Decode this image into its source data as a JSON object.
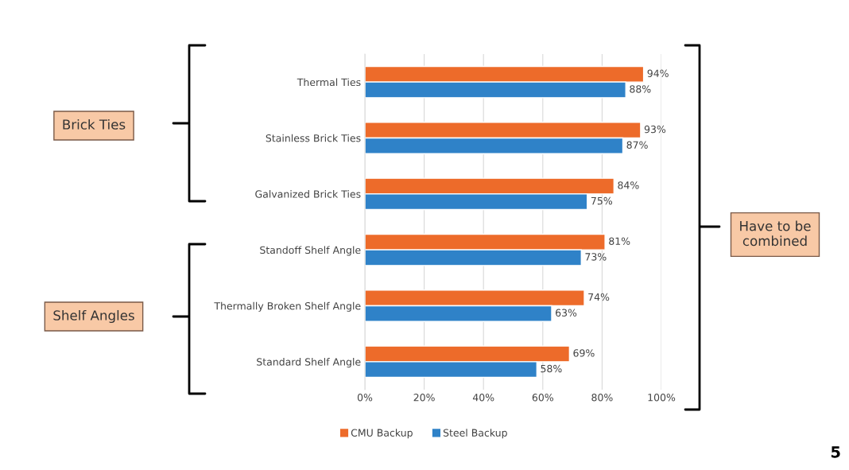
{
  "chart_data": {
    "type": "bar",
    "orientation": "horizontal",
    "categories": [
      "Thermal Ties",
      "Stainless Brick Ties",
      "Galvanized Brick Ties",
      "Standoff Shelf Angle",
      "Thermally Broken Shelf Angle",
      "Standard Shelf Angle"
    ],
    "series": [
      {
        "name": "CMU Backup",
        "color": "#ed6b2a",
        "values": [
          94,
          93,
          84,
          81,
          74,
          69
        ],
        "value_labels": [
          "94%",
          "93%",
          "84%",
          "81%",
          "74%",
          "69%"
        ]
      },
      {
        "name": "Steel Backup",
        "color": "#2f82c8",
        "values": [
          88,
          87,
          75,
          73,
          63,
          58
        ],
        "value_labels": [
          "88%",
          "87%",
          "75%",
          "73%",
          "63%",
          "58%"
        ]
      }
    ],
    "xlim": [
      0,
      100
    ],
    "xticks": [
      {
        "value": 0,
        "label": "0%"
      },
      {
        "value": 20,
        "label": "20%"
      },
      {
        "value": 40,
        "label": "40%"
      },
      {
        "value": 60,
        "label": "60%"
      },
      {
        "value": 80,
        "label": "80%"
      },
      {
        "value": 100,
        "label": "100%"
      }
    ],
    "grid": "x",
    "legend": "bottom",
    "annotations": [
      "Brick Ties",
      "Shelf Angles",
      "Have to be combined",
      "5"
    ]
  }
}
